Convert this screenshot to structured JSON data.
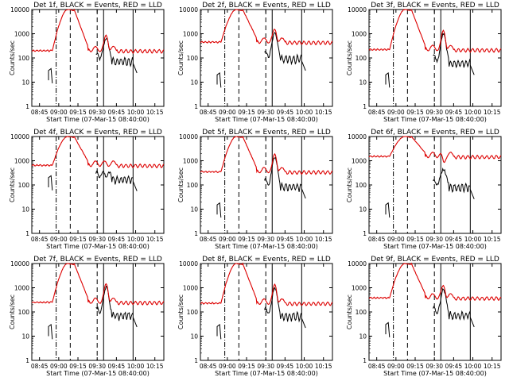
{
  "chart_data": {
    "type": "line",
    "layout": "3x3 grid",
    "x_tick_labels": [
      "08:45",
      "09:00",
      "09:15",
      "09:30",
      "09:45",
      "10:00",
      "10:15"
    ],
    "x_ticks_minutes": [
      0,
      15,
      30,
      45,
      60,
      75,
      90
    ],
    "xlim_minutes": [
      -6,
      97
    ],
    "ylim": [
      1,
      10000
    ],
    "yscale": "log",
    "y_tick_labels": [
      "1",
      "10",
      "100",
      "1000",
      "10000"
    ],
    "y_ticks": [
      1,
      10,
      100,
      1000,
      10000
    ],
    "ylabel": "Counts/sec",
    "xlabel": "Start Time (07-Mar-15 08:40:00)",
    "markers_minutes": {
      "dash_dot": 13,
      "dashed_1": 24,
      "dashed_2": 45,
      "solid_1": 50,
      "solid_2": 73
    },
    "series_colors": {
      "events": "#000000",
      "lld": "#dd0000"
    },
    "panels": [
      {
        "title": "Det 1f, BLACK = Events, RED = LLD",
        "lld_base": 200,
        "ev_base": 120,
        "flare_peak": 10000,
        "spike": 800,
        "ev_x": 7,
        "ev_y": 30
      },
      {
        "title": "Det 2f, BLACK = Events, RED = LLD",
        "lld_base": 450,
        "ev_base": 150,
        "flare_peak": 10000,
        "spike": 1400,
        "ev_x": 7,
        "ev_y": 20
      },
      {
        "title": "Det 3f, BLACK = Events, RED = LLD",
        "lld_base": 220,
        "ev_base": 100,
        "flare_peak": 10000,
        "spike": 1300,
        "ev_x": 7,
        "ev_y": 20
      },
      {
        "title": "Det 4f, BLACK = Events, RED = LLD",
        "lld_base": 650,
        "ev_base": 280,
        "flare_peak": 10000,
        "spike": 0,
        "ev_x": 7,
        "ev_y": 200
      },
      {
        "title": "Det 5f, BLACK = Events, RED = LLD",
        "lld_base": 350,
        "ev_base": 140,
        "flare_peak": 10000,
        "spike": 1800,
        "ev_x": 7,
        "ev_y": 15
      },
      {
        "title": "Det 6f, BLACK = Events, RED = LLD",
        "lld_base": 1500,
        "ev_base": 130,
        "flare_peak": 10000,
        "spike": 500,
        "ev_x": 7,
        "ev_y": 15
      },
      {
        "title": "Det 7f, BLACK = Events, RED = LLD",
        "lld_base": 250,
        "ev_base": 120,
        "flare_peak": 10000,
        "spike": 1400,
        "ev_x": 7,
        "ev_y": 25
      },
      {
        "title": "Det 8f, BLACK = Events, RED = LLD",
        "lld_base": 230,
        "ev_base": 110,
        "flare_peak": 10000,
        "spike": 1300,
        "ev_x": 7,
        "ev_y": 25
      },
      {
        "title": "Det 9f, BLACK = Events, RED = LLD",
        "lld_base": 380,
        "ev_base": 120,
        "flare_peak": 10000,
        "spike": 1100,
        "ev_x": 7,
        "ev_y": 30
      }
    ]
  }
}
